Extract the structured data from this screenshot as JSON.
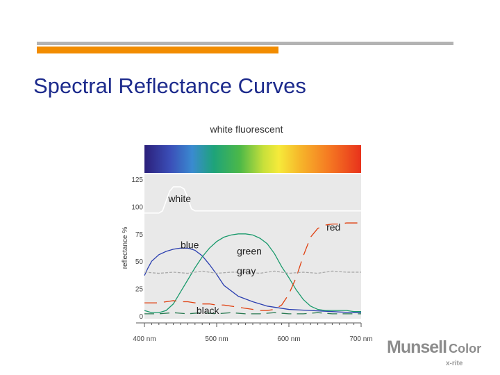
{
  "slide": {
    "title": "Spectral Reflectance Curves"
  },
  "logo": {
    "main": "Munsell",
    "sub": "Color",
    "small": "x-rite"
  },
  "colors": {
    "title": "#1c2a8c",
    "rule_gray": "#b3b3b3",
    "rule_orange": "#f28c00",
    "plot_bg": "#e9e9e9"
  },
  "chart_data": {
    "type": "line",
    "title": "white fluorescent",
    "xlabel": "",
    "ylabel": "reflectance %",
    "xlim": [
      400,
      700
    ],
    "ylim": [
      0,
      125
    ],
    "x_ticks": [
      400,
      500,
      600,
      700
    ],
    "x_tick_labels": [
      "400 nm",
      "500 nm",
      "600 nm",
      "700 nm"
    ],
    "y_ticks": [
      0,
      25,
      50,
      75,
      100,
      125
    ],
    "y_tick_labels": [
      "0",
      "25",
      "50",
      "75",
      "100",
      "125"
    ],
    "grid": false,
    "legend": "inline labels",
    "spectrum_bar": true,
    "series": [
      {
        "name": "white",
        "color": "#ffffff",
        "label_at": [
          433,
          104
        ],
        "x": [
          400,
          420,
          425,
          430,
          435,
          440,
          445,
          450,
          455,
          460,
          465,
          470,
          475,
          700
        ],
        "y": [
          94,
          94,
          96,
          105,
          114,
          118,
          118,
          118,
          116,
          108,
          98,
          96,
          96,
          96
        ]
      },
      {
        "name": "blue",
        "color": "#2b3fb0",
        "label_at": [
          450,
          62
        ],
        "x": [
          400,
          405,
          410,
          420,
          430,
          440,
          450,
          460,
          470,
          480,
          490,
          500,
          510,
          530,
          550,
          570,
          600,
          630,
          660,
          690,
          700
        ],
        "y": [
          37,
          44,
          50,
          56,
          59,
          61,
          62,
          62,
          60,
          55,
          47,
          38,
          28,
          18,
          13,
          9,
          6,
          5,
          4,
          3,
          3
        ]
      },
      {
        "name": "green",
        "color": "#1a9a6c",
        "label_at": [
          528,
          56
        ],
        "x": [
          400,
          410,
          420,
          430,
          440,
          450,
          460,
          470,
          480,
          490,
          500,
          510,
          520,
          530,
          540,
          550,
          560,
          570,
          580,
          590,
          600,
          610,
          620,
          630,
          640,
          650,
          660,
          670,
          680,
          690,
          700
        ],
        "y": [
          5,
          3,
          3,
          5,
          11,
          22,
          33,
          44,
          54,
          62,
          68,
          72,
          74,
          75,
          75,
          74,
          71,
          66,
          57,
          45,
          35,
          24,
          15,
          9,
          6,
          5,
          5,
          5,
          5,
          4,
          4
        ]
      },
      {
        "name": "red",
        "color": "#e04010",
        "label_at": [
          652,
          78
        ],
        "x": [
          400,
          420,
          430,
          440,
          450,
          460,
          470,
          480,
          490,
          500,
          510,
          520,
          530,
          540,
          550,
          560,
          570,
          580,
          590,
          600,
          610,
          620,
          630,
          640,
          650,
          660,
          670,
          680,
          690,
          700
        ],
        "y": [
          12,
          12,
          13,
          14,
          13,
          13,
          12,
          11,
          11,
          10,
          10,
          9,
          8,
          7,
          6,
          5,
          5,
          6,
          10,
          20,
          35,
          55,
          72,
          80,
          83,
          84,
          84,
          85,
          85,
          85
        ]
      },
      {
        "name": "gray",
        "color": "#a8a8a8",
        "label_at": [
          528,
          38
        ],
        "x": [
          400,
          420,
          440,
          460,
          480,
          500,
          520,
          540,
          560,
          580,
          600,
          620,
          640,
          660,
          680,
          700
        ],
        "y": [
          40,
          39,
          40,
          39,
          41,
          39,
          40,
          40,
          39,
          41,
          39,
          40,
          39,
          41,
          40,
          40
        ]
      },
      {
        "name": "black",
        "color": "#2a7a52",
        "label_at": [
          472,
          2
        ],
        "x": [
          400,
          420,
          440,
          460,
          480,
          500,
          520,
          540,
          560,
          580,
          600,
          620,
          640,
          660,
          680,
          700
        ],
        "y": [
          2,
          2,
          3,
          2,
          3,
          2,
          3,
          2,
          2,
          3,
          2,
          2,
          3,
          2,
          2,
          2
        ]
      }
    ]
  }
}
